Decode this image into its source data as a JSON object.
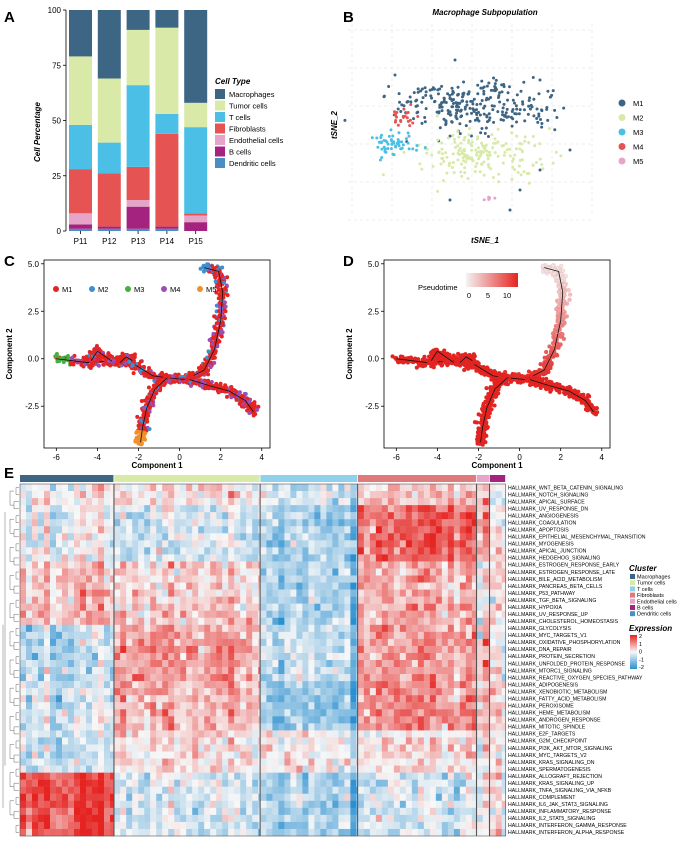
{
  "panel_labels": {
    "A": "A",
    "B": "B",
    "C": "C",
    "D": "D",
    "E": "E"
  },
  "chart_data": [
    {
      "panel": "A",
      "type": "bar",
      "stacked": true,
      "title": "",
      "ylabel": "Cell Percentage",
      "xlabel": "",
      "ylim": [
        0,
        100
      ],
      "yticks": [
        "0",
        "25",
        "50",
        "75",
        "100"
      ],
      "categories": [
        "P11",
        "P12",
        "P13",
        "P14",
        "P15"
      ],
      "legend_title": "Cell Type",
      "series": [
        {
          "name": "Dendritic cells",
          "color": "#4a8fc1",
          "values": [
            1,
            1,
            1,
            1,
            0
          ]
        },
        {
          "name": "B cells",
          "color": "#a4237e",
          "values": [
            2,
            1,
            10,
            1,
            4
          ]
        },
        {
          "name": "Endothelial cells",
          "color": "#e6a4c8",
          "values": [
            5,
            0,
            3,
            0,
            3
          ]
        },
        {
          "name": "Fibroblasts",
          "color": "#e55353",
          "values": [
            20,
            24,
            15,
            42,
            1
          ]
        },
        {
          "name": "T cells",
          "color": "#4cbfe7",
          "values": [
            20,
            14,
            37,
            9,
            39
          ]
        },
        {
          "name": "Tumor cells",
          "color": "#d8e9a8",
          "values": [
            31,
            29,
            25,
            39,
            11
          ]
        },
        {
          "name": "Macrophages",
          "color": "#3d6584",
          "values": [
            21,
            31,
            9,
            8,
            42
          ]
        }
      ],
      "legend_order": [
        "Macrophages",
        "Tumor cells",
        "T cells",
        "Fibroblasts",
        "Endothelial cells",
        "B cells",
        "Dendritic cells"
      ]
    },
    {
      "panel": "B",
      "type": "scatter",
      "title": "Macrophage  Subpopulation",
      "xlabel": "tSNE_1",
      "ylabel": "tSNE_2",
      "series": [
        {
          "name": "M1",
          "color": "#3d6584"
        },
        {
          "name": "M2",
          "color": "#d8e9a8"
        },
        {
          "name": "M3",
          "color": "#4cbfe7"
        },
        {
          "name": "M4",
          "color": "#e55353"
        },
        {
          "name": "M5",
          "color": "#e6a4c8"
        }
      ]
    },
    {
      "panel": "C",
      "type": "scatter",
      "title": "",
      "xlabel": "Component 1",
      "ylabel": "Component 2",
      "xlim": [
        -6.6,
        4.4
      ],
      "ylim": [
        -4.7,
        5.2
      ],
      "xticks": [
        "-6",
        "-4",
        "-2",
        "0",
        "2",
        "4"
      ],
      "yticks": [
        "5.0",
        "2.5",
        "0.0",
        "-2.5"
      ],
      "series": [
        {
          "name": "M1",
          "color": "#e52421"
        },
        {
          "name": "M2",
          "color": "#3f8fd0"
        },
        {
          "name": "M3",
          "color": "#45b041"
        },
        {
          "name": "M4",
          "color": "#9b4fb5"
        },
        {
          "name": "M5",
          "color": "#f0902c"
        }
      ]
    },
    {
      "panel": "D",
      "type": "scatter",
      "title": "",
      "xlabel": "Component 1",
      "ylabel": "Component 2",
      "xlim": [
        -6.6,
        4.4
      ],
      "ylim": [
        -4.7,
        5.2
      ],
      "xticks": [
        "-6",
        "-4",
        "-2",
        "0",
        "2",
        "4"
      ],
      "yticks": [
        "5.0",
        "2.5",
        "0.0",
        "-2.5"
      ],
      "color_legend": {
        "title": "Pseudotime",
        "ticks": [
          "0",
          "5",
          "10"
        ],
        "low": "#f3f3f3",
        "high": "#e52421"
      }
    },
    {
      "panel": "E",
      "type": "heatmap",
      "legend_cluster_title": "Cluster",
      "legend_expression_title": "Expression",
      "expression_ticks": [
        "2",
        "1",
        "0",
        "-1",
        "-2"
      ],
      "clusters": [
        {
          "name": "Macrophages",
          "color": "#3d6584",
          "weight": 14.5
        },
        {
          "name": "Tumor cells",
          "color": "#d8e9a8",
          "weight": 22.5
        },
        {
          "name": "T cells",
          "color": "#8fd0ea",
          "weight": 15
        },
        {
          "name": "Fibroblasts",
          "color": "#e07a7a",
          "weight": 18.3
        },
        {
          "name": "Endothelial cells",
          "color": "#e6a4c8",
          "weight": 2
        },
        {
          "name": "B cells",
          "color": "#a4237e",
          "weight": 2.5
        },
        {
          "name": "Dendritic cells",
          "color": "#4a8fc1",
          "weight": 0
        }
      ],
      "pathways": [
        "HALLMARK_WNT_BETA_CATENIN_SIGNALING",
        "HALLMARK_NOTCH_SIGNALING",
        "HALLMARK_APICAL_SURFACE",
        "HALLMARK_UV_RESPONSE_DN",
        "HALLMARK_ANGIOGENESIS",
        "HALLMARK_COAGULATION",
        "HALLMARK_APOPTOSIS",
        "HALLMARK_EPITHELIAL_MESENCHYMAL_TRANSITION",
        "HALLMARK_MYOGENESIS",
        "HALLMARK_APICAL_JUNCTION",
        "HALLMARK_HEDGEHOG_SIGNALING",
        "HALLMARK_ESTROGEN_RESPONSE_EARLY",
        "HALLMARK_ESTROGEN_RESPONSE_LATE",
        "HALLMARK_BILE_ACID_METABOLISM",
        "HALLMARK_PANCREAS_BETA_CELLS",
        "HALLMARK_P53_PATHWAY",
        "HALLMARK_TGF_BETA_SIGNALING",
        "HALLMARK_HYPOXIA",
        "HALLMARK_UV_RESPONSE_UP",
        "HALLMARK_CHOLESTEROL_HOMEOSTASIS",
        "HALLMARK_GLYCOLYSIS",
        "HALLMARK_MYC_TARGETS_V1",
        "HALLMARK_OXIDATIVE_PHOSPHORYLATION",
        "HALLMARK_DNA_REPAIR",
        "HALLMARK_PROTEIN_SECRETION",
        "HALLMARK_UNFOLDED_PROTEIN_RESPONSE",
        "HALLMARK_MTORC1_SIGNALING",
        "HALLMARK_REACTIVE_OXYGEN_SPECIES_PATHWAY",
        "HALLMARK_ADIPOGENESIS",
        "HALLMARK_XENOBIOTIC_METABOLISM",
        "HALLMARK_FATTY_ACID_METABOLISM",
        "HALLMARK_PEROXISOME",
        "HALLMARK_HEME_METABOLISM",
        "HALLMARK_ANDROGEN_RESPONSE",
        "HALLMARK_MITOTIC_SPINDLE",
        "HALLMARK_E2F_TARGETS",
        "HALLMARK_G2M_CHECKPOINT",
        "HALLMARK_PI3K_AKT_MTOR_SIGNALING",
        "HALLMARK_MYC_TARGETS_V2",
        "HALLMARK_KRAS_SIGNALING_DN",
        "HALLMARK_SPERMATOGENESIS",
        "HALLMARK_ALLOGRAFT_REJECTION",
        "HALLMARK_KRAS_SIGNALING_UP",
        "HALLMARK_TNFA_SIGNALING_VIA_NFKB",
        "HALLMARK_COMPLEMENT",
        "HALLMARK_IL6_JAK_STAT3_SIGNALING",
        "HALLMARK_INFLAMMATORY_RESPONSE",
        "HALLMARK_IL2_STAT5_SIGNALING",
        "HALLMARK_INTERFERON_GAMMA_RESPONSE",
        "HALLMARK_INTERFERON_ALPHA_RESPONSE"
      ]
    }
  ]
}
